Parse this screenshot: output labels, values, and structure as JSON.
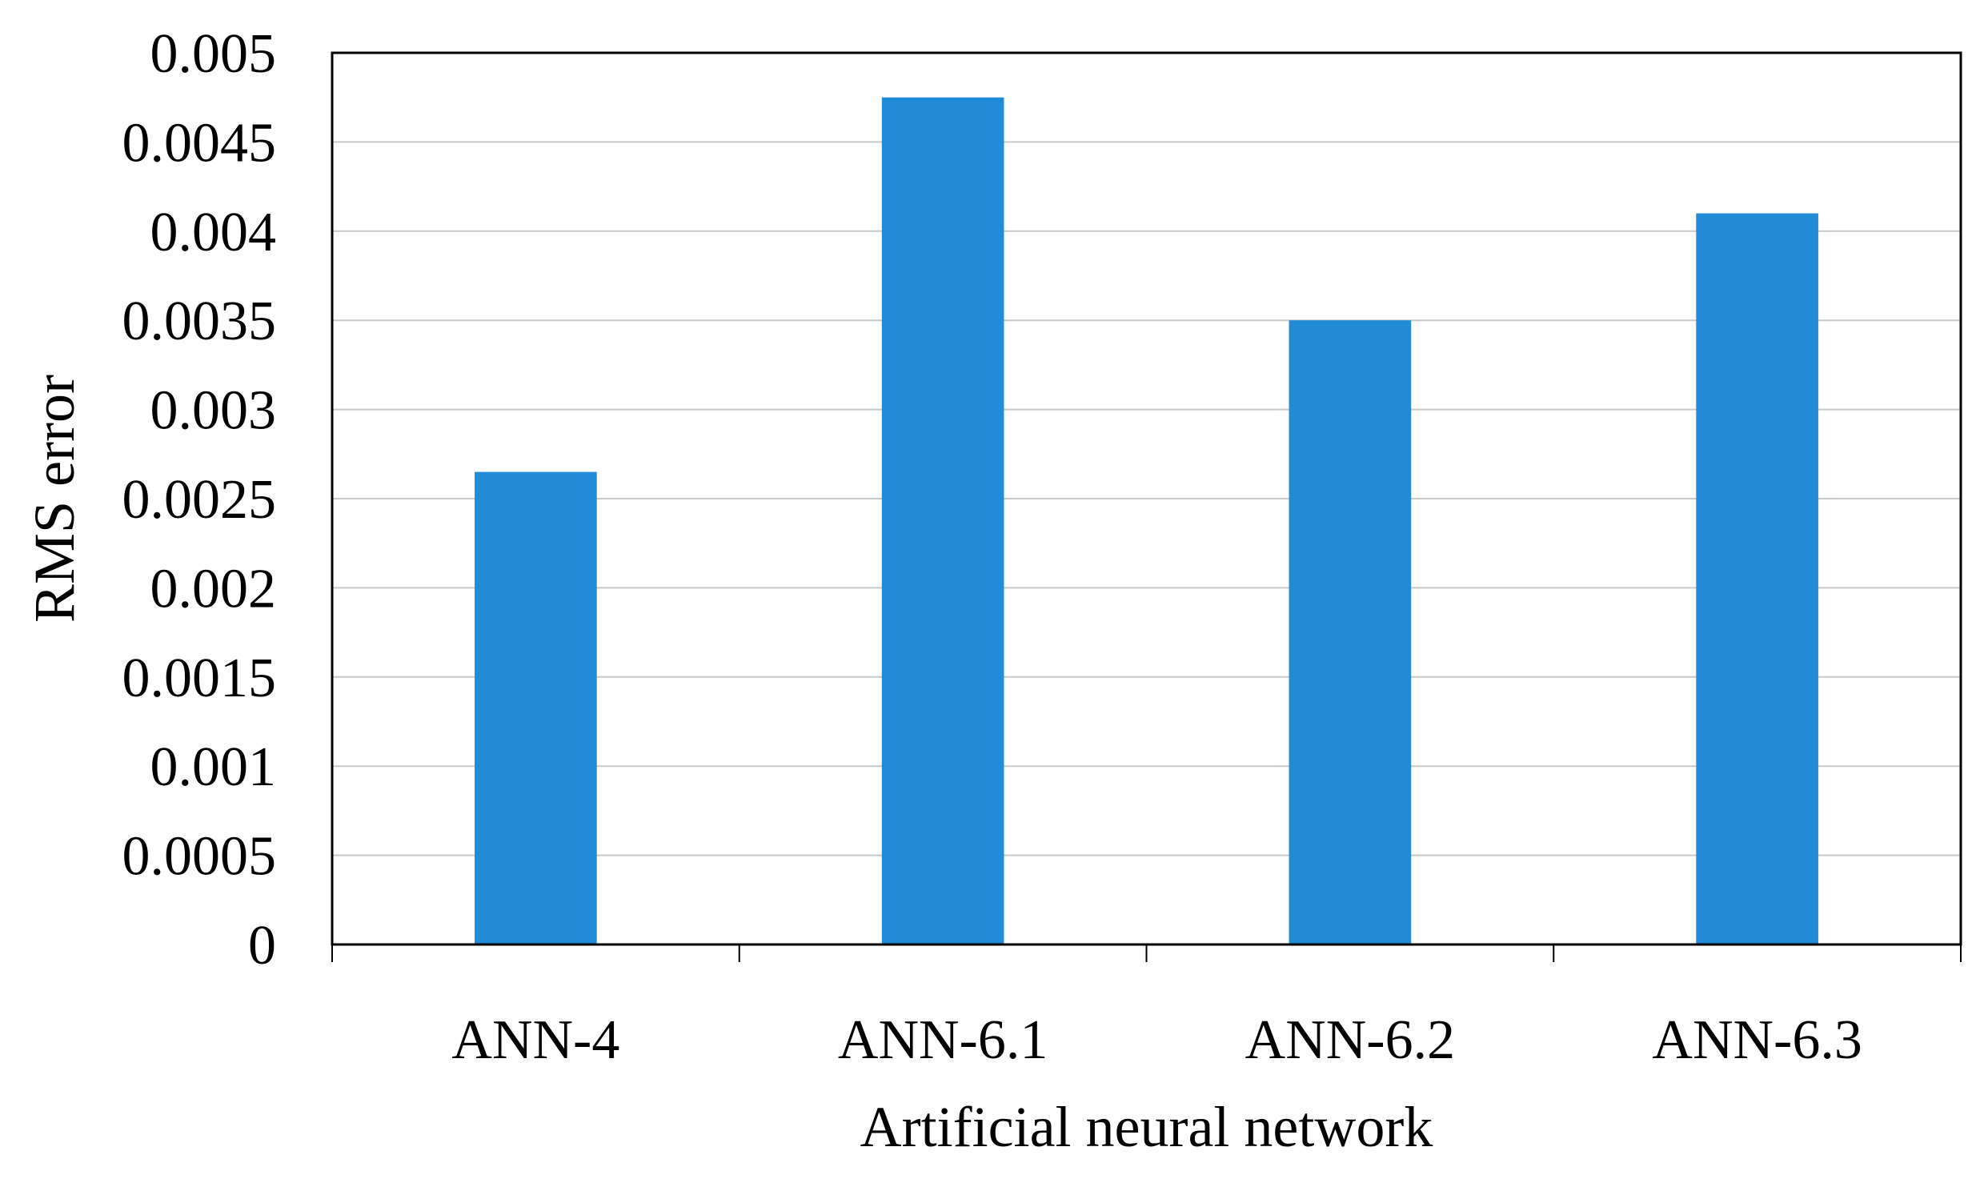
{
  "chart_data": {
    "type": "bar",
    "title": "",
    "xlabel": "Artificial neural network",
    "ylabel": "RMS error",
    "categories": [
      "ANN-4",
      "ANN-6.1",
      "ANN-6.2",
      "ANN-6.3"
    ],
    "values": [
      0.00265,
      0.00475,
      0.0035,
      0.0041
    ],
    "ylim": [
      0,
      0.005
    ],
    "yticks": [
      "0",
      "0.0005",
      "0.001",
      "0.0015",
      "0.002",
      "0.0025",
      "0.003",
      "0.0035",
      "0.004",
      "0.0045",
      "0.005"
    ],
    "grid": true,
    "legend": "none",
    "colors": {
      "bar": "#228bd7",
      "grid": "#c8c8c8",
      "axis": "#000000"
    }
  }
}
